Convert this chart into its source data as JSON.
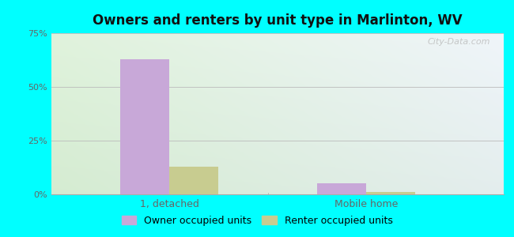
{
  "title": "Owners and renters by unit type in Marlinton, WV",
  "categories": [
    "1, detached",
    "Mobile home"
  ],
  "owner_values": [
    63.0,
    5.0
  ],
  "renter_values": [
    13.0,
    1.0
  ],
  "owner_color": "#c8a8d8",
  "renter_color": "#c8cc90",
  "ylim": [
    0,
    75
  ],
  "yticks": [
    0,
    25,
    50,
    75
  ],
  "ytick_labels": [
    "0%",
    "25%",
    "50%",
    "75%"
  ],
  "bar_width": 0.25,
  "outer_bg": "#00ffff",
  "legend_owner": "Owner occupied units",
  "legend_renter": "Renter occupied units",
  "watermark": "City-Data.com"
}
